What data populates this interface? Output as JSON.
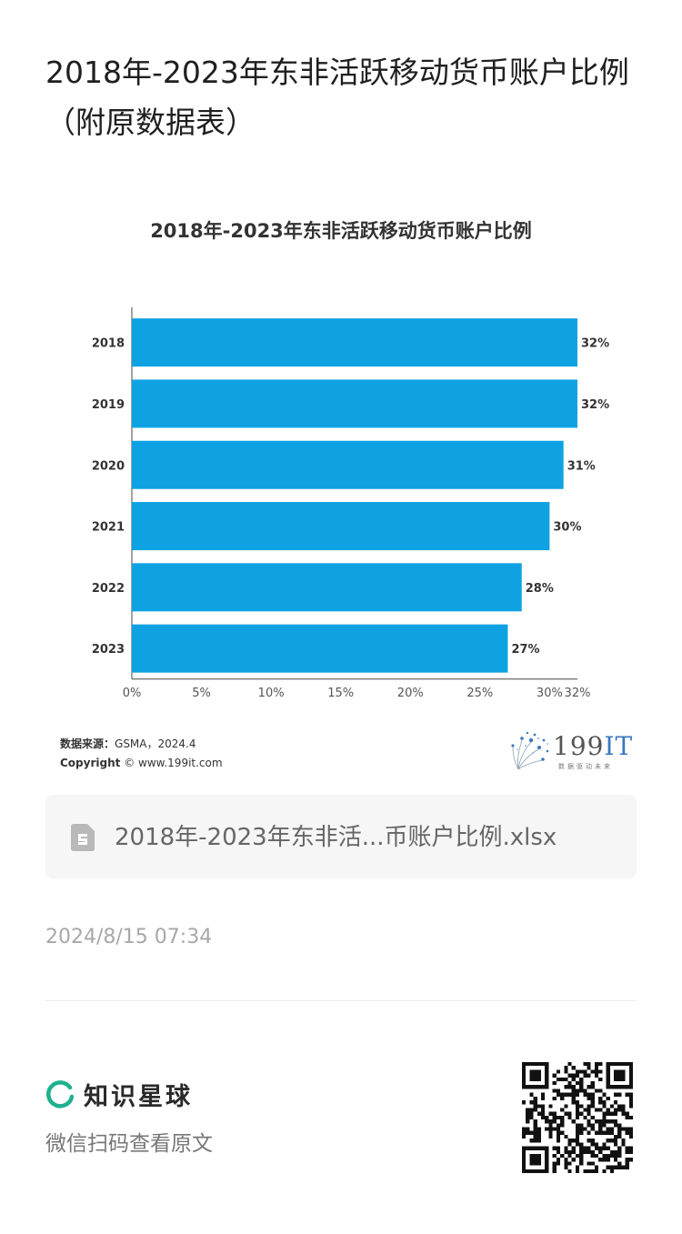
{
  "page": {
    "title": "2018年-2023年东非活跃移动货币账户比例（附原数据表）"
  },
  "chart_data": {
    "type": "bar",
    "orientation": "horizontal",
    "title": "2018年-2023年东非活跃移动货币账户比例",
    "categories": [
      "2018",
      "2019",
      "2020",
      "2021",
      "2022",
      "2023"
    ],
    "values": [
      32,
      32,
      31,
      30,
      28,
      27
    ],
    "value_labels": [
      "32%",
      "32%",
      "31%",
      "30%",
      "28%",
      "27%"
    ],
    "x_ticks": [
      "0%",
      "5%",
      "10%",
      "15%",
      "20%",
      "25%",
      "30%",
      "32%"
    ],
    "x_tick_values": [
      0,
      5,
      10,
      15,
      20,
      25,
      30,
      32
    ],
    "xlim": [
      0,
      32
    ],
    "bar_color": "#0ea2e3",
    "grid": false
  },
  "source": {
    "label": "数据来源：",
    "text": "GSMA，2024.4",
    "copyright_label": "Copyright",
    "copyright_text": "© www.199it.com"
  },
  "brand": {
    "name_num": "199",
    "name_it": "IT",
    "slogan": "数据驱动未来"
  },
  "attachment": {
    "icon": "spreadsheet-file-icon",
    "filename": "2018年-2023年东非活...币账户比例.xlsx"
  },
  "meta": {
    "timestamp": "2024/8/15 07:34"
  },
  "footer": {
    "brand_name": "知识星球",
    "hint": "微信扫码查看原文",
    "brand_color": "#1fb18f"
  }
}
